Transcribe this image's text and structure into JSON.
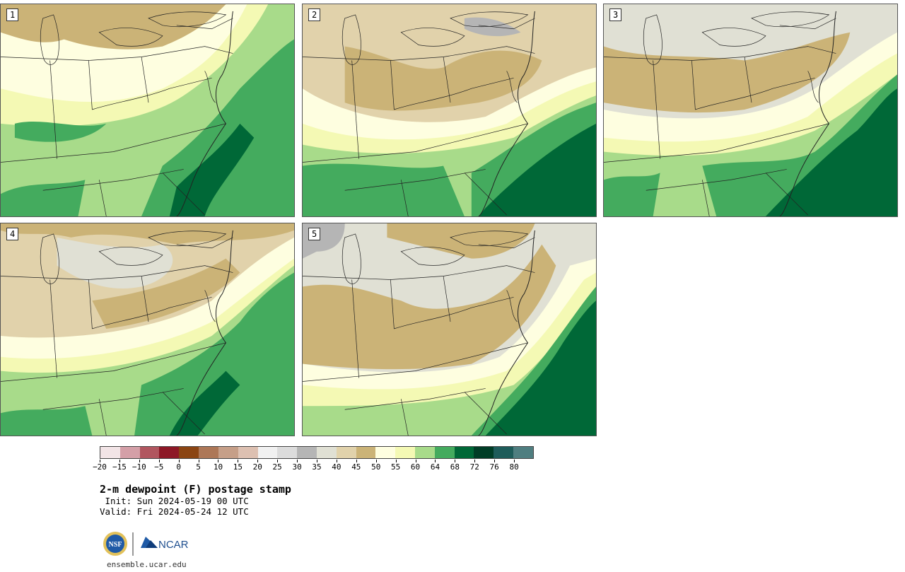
{
  "panels": [
    {
      "label": "1"
    },
    {
      "label": "2"
    },
    {
      "label": "3"
    },
    {
      "label": "4"
    },
    {
      "label": "5"
    }
  ],
  "colorbar": {
    "ticks": [
      "−20",
      "−15",
      "−10",
      "−5",
      "0",
      "5",
      "10",
      "15",
      "20",
      "25",
      "30",
      "35",
      "40",
      "45",
      "50",
      "55",
      "60",
      "64",
      "68",
      "72",
      "76",
      "80"
    ],
    "colors": [
      "#f2e4e6",
      "#d49fa7",
      "#b1565f",
      "#8d1826",
      "#8b4513",
      "#ad7757",
      "#c69f88",
      "#ddc0b1",
      "#f1f1f1",
      "#dcdcdc",
      "#b5b5b5",
      "#e0e0d4",
      "#e1d2ab",
      "#cbb377",
      "#fefee0",
      "#f4f9b4",
      "#a8db8a",
      "#44ab5e",
      "#006837",
      "#003d26",
      "#1e5c5a",
      "#4f7e80"
    ],
    "colors_note": ""
  },
  "title": "2-m dewpoint (F) postage stamp",
  "init": " Init: Sun 2024-05-19 00 UTC",
  "valid": "Valid: Fri 2024-05-24 12 UTC",
  "logos": {
    "nsf": "NSF",
    "ncar": "NCAR"
  },
  "site": "ensemble.ucar.edu"
}
